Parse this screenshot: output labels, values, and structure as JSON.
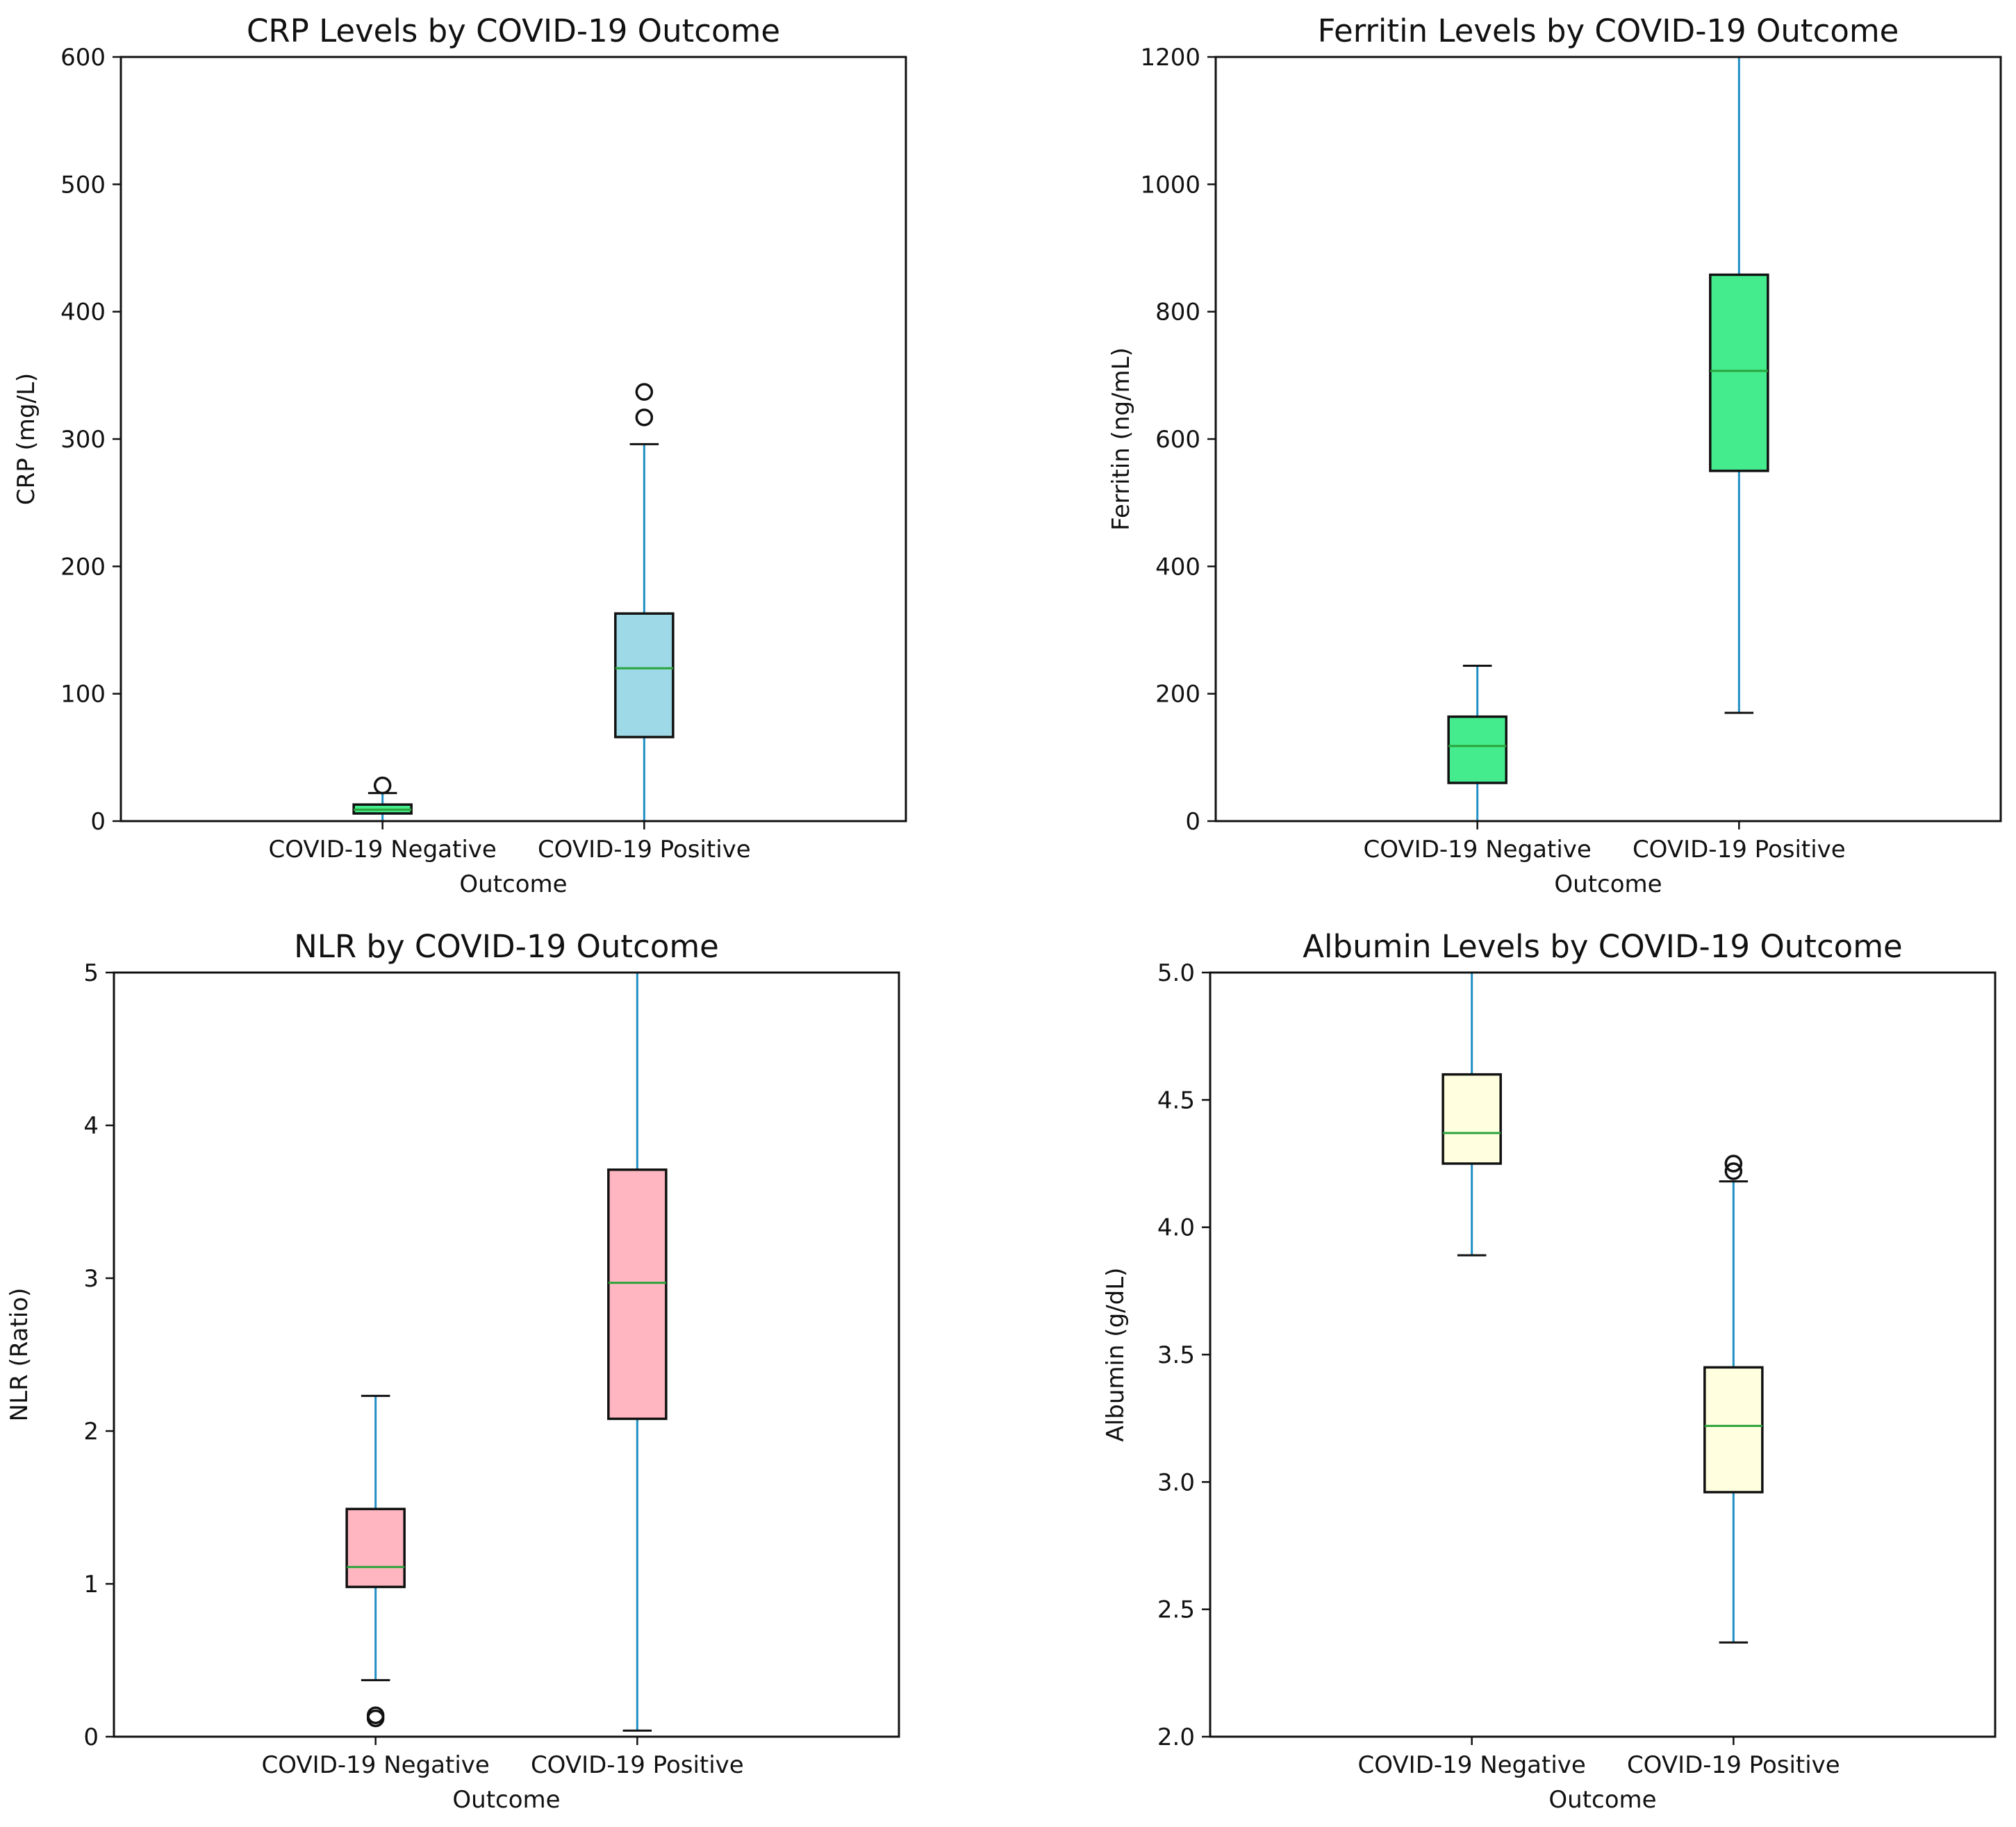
{
  "chart_data": [
    {
      "type": "box",
      "title": "CRP Levels by COVID-19 Outcome",
      "xlabel": "Outcome",
      "ylabel": "CRP (mg/L)",
      "ylim": [
        0,
        600
      ],
      "yticks": [
        0,
        100,
        200,
        300,
        400,
        500,
        600
      ],
      "categories": [
        "COVID-19 Negative",
        "COVID-19 Positive"
      ],
      "box_color": "#9dd9e6",
      "boxes": [
        {
          "whislo": 0,
          "q1": 6,
          "med": 9,
          "q3": 13,
          "whishi": 22,
          "fliers": [
            28
          ],
          "color": "#45ec8e"
        },
        {
          "whislo": 0,
          "q1": 66,
          "med": 120,
          "q3": 163,
          "whishi": 296,
          "fliers": [
            317,
            337
          ]
        }
      ]
    },
    {
      "type": "box",
      "title": "Ferritin Levels by COVID-19 Outcome",
      "xlabel": "Outcome",
      "ylabel": "Ferritin (ng/mL)",
      "ylim": [
        0,
        1200
      ],
      "yticks": [
        0,
        200,
        400,
        600,
        800,
        1000,
        1200
      ],
      "categories": [
        "COVID-19 Negative",
        "COVID-19 Positive"
      ],
      "box_color": "#45ec8e",
      "boxes": [
        {
          "whislo": 0,
          "q1": 60,
          "med": 118,
          "q3": 164,
          "whishi": 244,
          "fliers": []
        },
        {
          "whislo": 170,
          "q1": 550,
          "med": 707,
          "q3": 858,
          "whishi": 1200,
          "fliers": []
        }
      ]
    },
    {
      "type": "box",
      "title": "NLR by COVID-19 Outcome",
      "xlabel": "Outcome",
      "ylabel": "NLR (Ratio)",
      "ylim": [
        0,
        5
      ],
      "yticks": [
        0,
        1,
        2,
        3,
        4,
        5
      ],
      "categories": [
        "COVID-19 Negative",
        "COVID-19 Positive"
      ],
      "box_color": "#ffb6c1",
      "boxes": [
        {
          "whislo": 0.37,
          "q1": 0.98,
          "med": 1.11,
          "q3": 1.49,
          "whishi": 2.23,
          "fliers": [
            0.12,
            0.14
          ]
        },
        {
          "whislo": 0.04,
          "q1": 2.08,
          "med": 2.97,
          "q3": 3.71,
          "whishi": 5,
          "fliers": []
        }
      ]
    },
    {
      "type": "box",
      "title": "Albumin Levels by COVID-19 Outcome",
      "xlabel": "Outcome",
      "ylabel": "Albumin (g/dL)",
      "ylim": [
        2.0,
        5.0
      ],
      "yticks": [
        "2.0",
        "2.5",
        "3.0",
        "3.5",
        "4.0",
        "4.5",
        "5.0"
      ],
      "categories": [
        "COVID-19 Negative",
        "COVID-19 Positive"
      ],
      "box_color": "#ffffe0",
      "boxes": [
        {
          "whislo": 3.89,
          "q1": 4.25,
          "med": 4.37,
          "q3": 4.6,
          "whishi": 5.0,
          "fliers": []
        },
        {
          "whislo": 2.37,
          "q1": 2.96,
          "med": 3.22,
          "q3": 3.45,
          "whishi": 4.18,
          "fliers": [
            4.22,
            4.25
          ]
        }
      ]
    }
  ],
  "colors": {
    "whisker": "#1f8fc4",
    "median": "#2aa33a",
    "box_edge": "#111111",
    "axes": "#111111"
  }
}
